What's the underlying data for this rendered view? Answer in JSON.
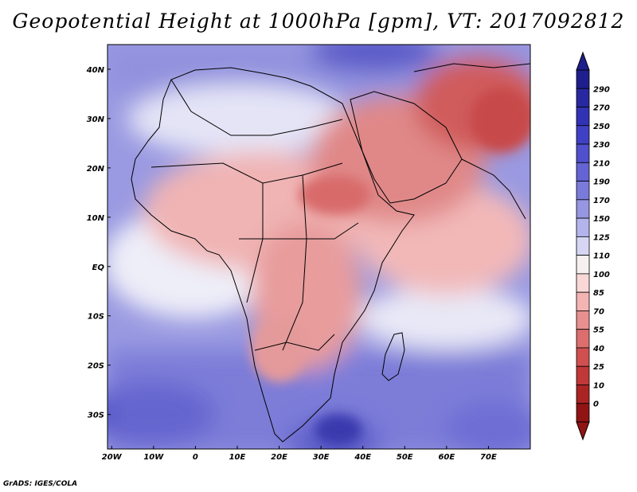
{
  "title": "Geopotential Height at 1000hPa [gpm], VT: 2017092812",
  "credit": "GrADS: IGES/COLA",
  "map": {
    "lat_labels": [
      "40N",
      "30N",
      "20N",
      "10N",
      "EQ",
      "10S",
      "20S",
      "30S"
    ],
    "lon_labels": [
      "20W",
      "10W",
      "0",
      "10E",
      "20E",
      "30E",
      "40E",
      "50E",
      "60E",
      "70E"
    ],
    "lon_range": [
      -21,
      80
    ],
    "lat_range": [
      -37,
      45
    ]
  },
  "colorbar": {
    "labels": [
      "290",
      "270",
      "250",
      "230",
      "210",
      "190",
      "170",
      "150",
      "125",
      "110",
      "100",
      "85",
      "70",
      "55",
      "40",
      "25",
      "10",
      "0"
    ],
    "colors": [
      "#1e1e8c",
      "#2828a0",
      "#3232b4",
      "#4040c4",
      "#5050cc",
      "#6464d4",
      "#7a7ada",
      "#9696e2",
      "#b4b4ec",
      "#d6d6f4",
      "#f6f0f0",
      "#fad8d8",
      "#f4b4b4",
      "#e89090",
      "#dc6e6e",
      "#d05050",
      "#c03838",
      "#aa2424",
      "#901414"
    ]
  },
  "legend": {
    "colors": {
      "ocean_south": "#8080dc",
      "ocean_deep": "#5252c6",
      "ocean_north": "#9c9ce4",
      "land_warm": "#eeaaaa",
      "land_hot": "#dd6f6f",
      "land_max": "#c84444",
      "neutral": "#f4f0f6"
    }
  }
}
